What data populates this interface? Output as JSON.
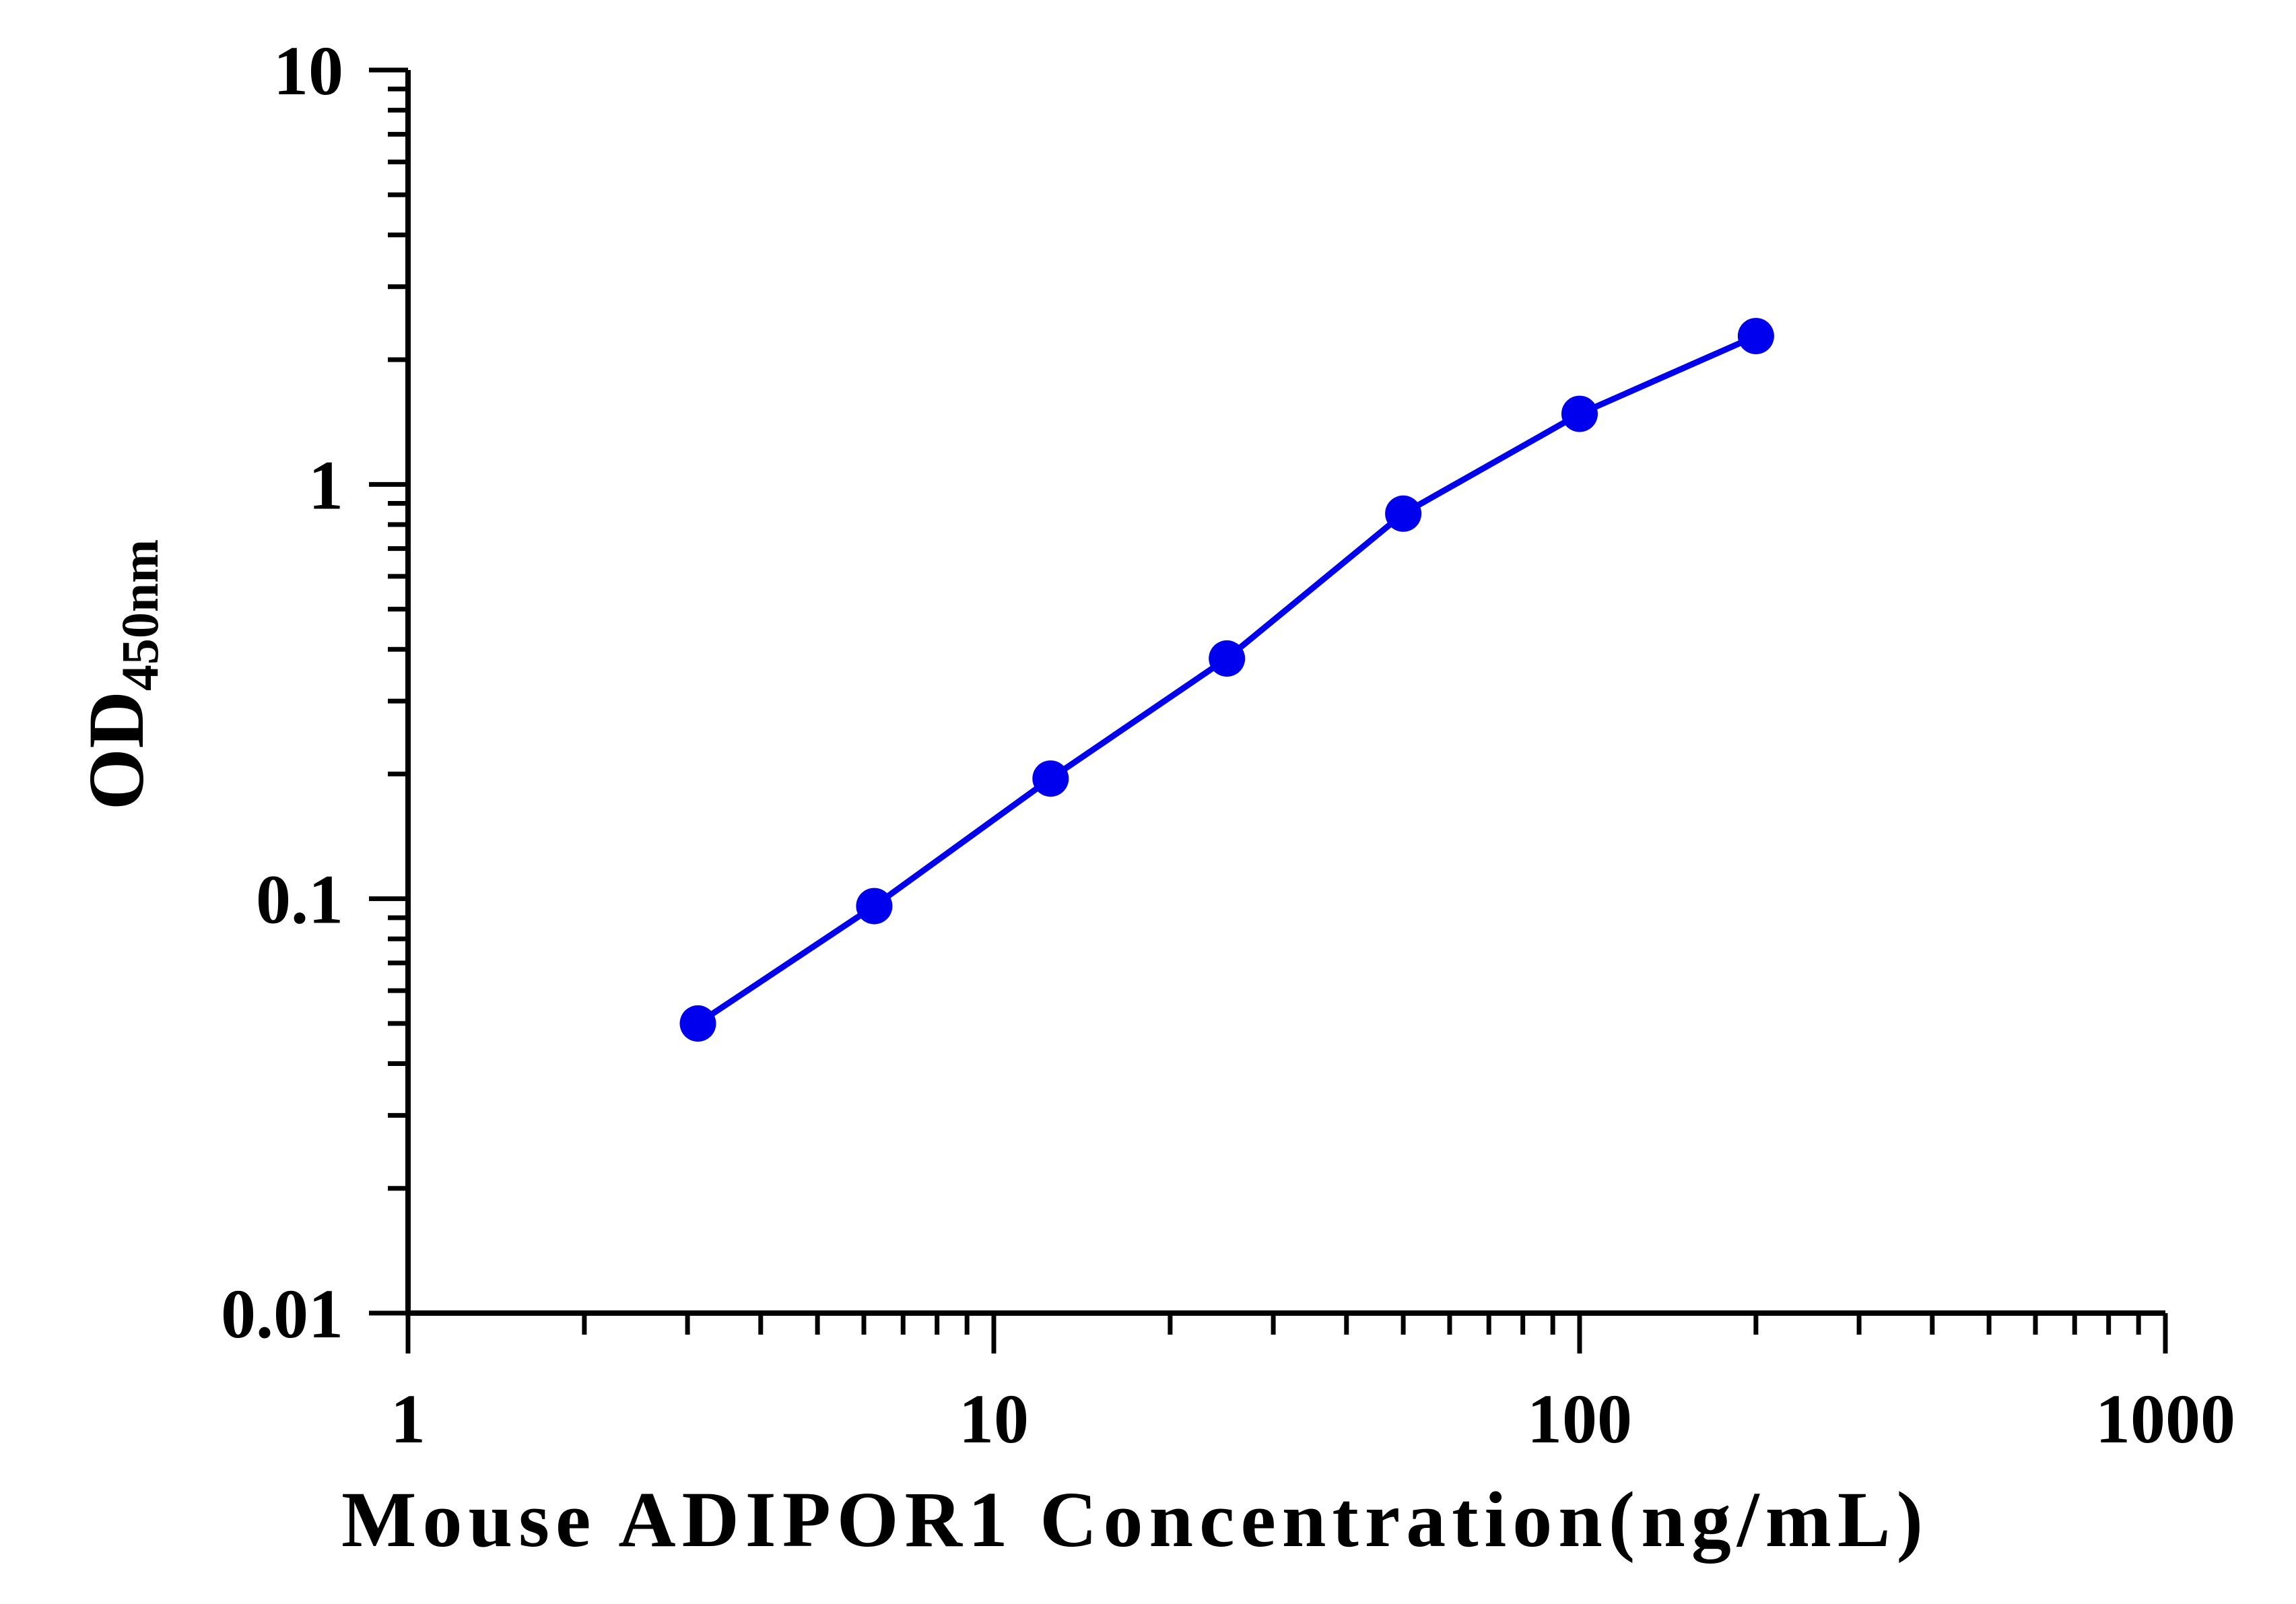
{
  "chart_data": {
    "type": "line",
    "title": "",
    "xlabel": "Mouse ADIPOR1 Concentration(ng/mL)",
    "ylabel": {
      "main": "OD",
      "subscript": "450nm"
    },
    "x_scale": "log",
    "y_scale": "log",
    "xlim": [
      1,
      1000
    ],
    "ylim": [
      0.01,
      10
    ],
    "x_ticks": [
      "1",
      "10",
      "100",
      "1000"
    ],
    "y_ticks": [
      "0.01",
      "0.1",
      "1",
      "10"
    ],
    "grid": false,
    "legend": "none",
    "series": [
      {
        "color": "#0000ee",
        "x": [
          3.125,
          6.25,
          12.5,
          25,
          50,
          100,
          200
        ],
        "y": [
          0.05,
          0.096,
          0.195,
          0.38,
          0.85,
          1.48,
          2.28
        ]
      }
    ]
  }
}
